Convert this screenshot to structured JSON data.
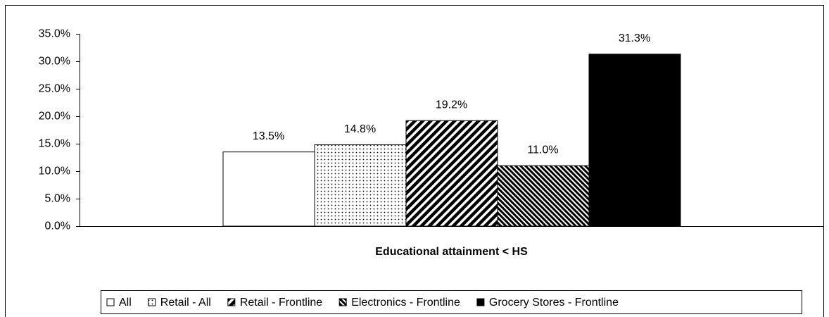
{
  "chart_data": {
    "type": "bar",
    "categories": [
      "Educational attainment < HS"
    ],
    "series": [
      {
        "name": "All",
        "color": "#000000",
        "pattern": "none",
        "values": [
          13.5
        ],
        "value_labels": [
          "13.5%"
        ]
      },
      {
        "name": "Retail - All",
        "color": "#000000",
        "pattern": "dots",
        "values": [
          14.8
        ],
        "value_labels": [
          "14.8%"
        ]
      },
      {
        "name": "Retail - Frontline",
        "color": "#000000",
        "pattern": "wide-diagonal",
        "values": [
          19.2
        ],
        "value_labels": [
          "19.2%"
        ]
      },
      {
        "name": "Electronics - Frontline",
        "color": "#000000",
        "pattern": "dark-downward-diagonal",
        "values": [
          11.0
        ],
        "value_labels": [
          "11.0%"
        ]
      },
      {
        "name": "Grocery Stores - Frontline",
        "color": "#000000",
        "pattern": "solid",
        "values": [
          31.3
        ],
        "value_labels": [
          "31.3%"
        ]
      }
    ],
    "ylim": [
      0,
      35
    ],
    "yticks": [
      {
        "value": 0,
        "label": "0.0%"
      },
      {
        "value": 5,
        "label": "5.0%"
      },
      {
        "value": 10,
        "label": "10.0%"
      },
      {
        "value": 15,
        "label": "15.0%"
      },
      {
        "value": 20,
        "label": "20.0%"
      },
      {
        "value": 25,
        "label": "25.0%"
      },
      {
        "value": 30,
        "label": "30.0%"
      },
      {
        "value": 35,
        "label": "35.0%"
      }
    ],
    "grid": false,
    "legend": "bottom"
  }
}
